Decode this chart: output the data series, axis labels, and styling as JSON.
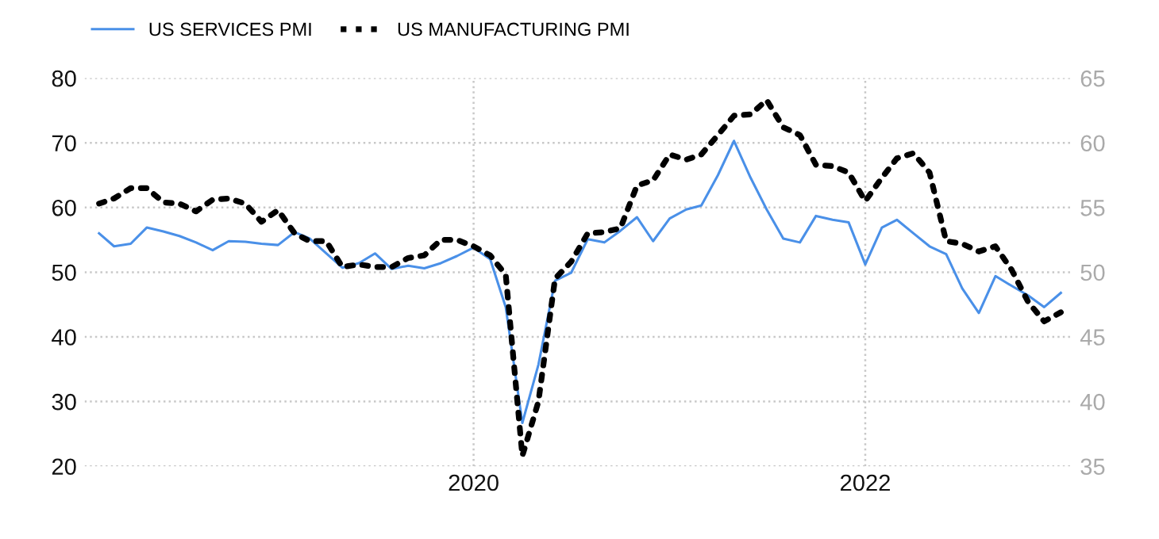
{
  "chart_data": {
    "type": "line",
    "x": [
      "2018-02",
      "2018-03",
      "2018-04",
      "2018-05",
      "2018-06",
      "2018-07",
      "2018-08",
      "2018-09",
      "2018-10",
      "2018-11",
      "2018-12",
      "2019-01",
      "2019-02",
      "2019-03",
      "2019-04",
      "2019-05",
      "2019-06",
      "2019-07",
      "2019-08",
      "2019-09",
      "2019-10",
      "2019-11",
      "2019-12",
      "2020-01",
      "2020-02",
      "2020-03",
      "2020-04",
      "2020-05",
      "2020-06",
      "2020-07",
      "2020-08",
      "2020-09",
      "2020-10",
      "2020-11",
      "2020-12",
      "2021-01",
      "2021-02",
      "2021-03",
      "2021-04",
      "2021-05",
      "2021-06",
      "2021-07",
      "2021-08",
      "2021-09",
      "2021-10",
      "2021-11",
      "2021-12",
      "2022-01",
      "2022-02",
      "2022-03",
      "2022-04",
      "2022-05",
      "2022-06",
      "2022-07",
      "2022-08",
      "2022-09",
      "2022-10",
      "2022-11",
      "2022-12",
      "2023-01"
    ],
    "series": [
      {
        "name": "US SERVICES PMI",
        "color": "#4a90e8",
        "line_style": "solid",
        "values": [
          56.0,
          54.0,
          54.4,
          56.9,
          56.3,
          55.6,
          54.6,
          53.4,
          54.8,
          54.7,
          54.4,
          54.2,
          56.2,
          55.2,
          52.9,
          50.7,
          51.4,
          52.9,
          50.5,
          51.0,
          50.6,
          51.4,
          52.5,
          53.8,
          52.0,
          44.6,
          26.7,
          35.7,
          48.7,
          49.9,
          55.1,
          54.6,
          56.4,
          58.5,
          54.8,
          58.3,
          59.7,
          60.3,
          65.0,
          70.3,
          64.6,
          59.7,
          55.2,
          54.6,
          58.7,
          58.1,
          57.7,
          51.2,
          56.9,
          58.1,
          56.0,
          54.0,
          52.8,
          47.5,
          43.7,
          49.4,
          47.9,
          46.4,
          44.6,
          46.8
        ]
      },
      {
        "name": "US MANUFACTURING PMI",
        "color": "#000000",
        "axis": "y2",
        "line_style": "dotted",
        "values": [
          55.3,
          55.7,
          56.5,
          56.5,
          55.4,
          55.3,
          54.7,
          55.6,
          55.7,
          55.3,
          53.9,
          54.8,
          53.0,
          52.4,
          52.4,
          50.4,
          50.6,
          50.4,
          50.4,
          51.1,
          51.3,
          52.5,
          52.5,
          52.0,
          51.3,
          49.8,
          35.8,
          40.0,
          49.5,
          50.8,
          53.0,
          53.1,
          53.4,
          56.7,
          57.1,
          59.1,
          58.7,
          59.1,
          60.6,
          62.1,
          62.2,
          63.3,
          61.2,
          60.6,
          58.3,
          58.2,
          57.7,
          55.5,
          57.3,
          58.8,
          59.2,
          57.7,
          52.4,
          52.2,
          51.6,
          52.0,
          50.2,
          47.7,
          46.2,
          46.9
        ]
      }
    ],
    "xlim": [
      "2018-01-05",
      "2023-01-22"
    ],
    "xticks": [
      {
        "value": "2020-01-01",
        "label": "2020"
      },
      {
        "value": "2022-01-01",
        "label": "2022"
      }
    ],
    "ylim": [
      20,
      80
    ],
    "yticks": [
      20,
      30,
      40,
      50,
      60,
      70,
      80
    ],
    "y2lim": [
      35,
      65
    ],
    "y2ticks": [
      35,
      40,
      45,
      50,
      55,
      60,
      65
    ],
    "grid": true,
    "legend": "top left",
    "marker": "none"
  }
}
